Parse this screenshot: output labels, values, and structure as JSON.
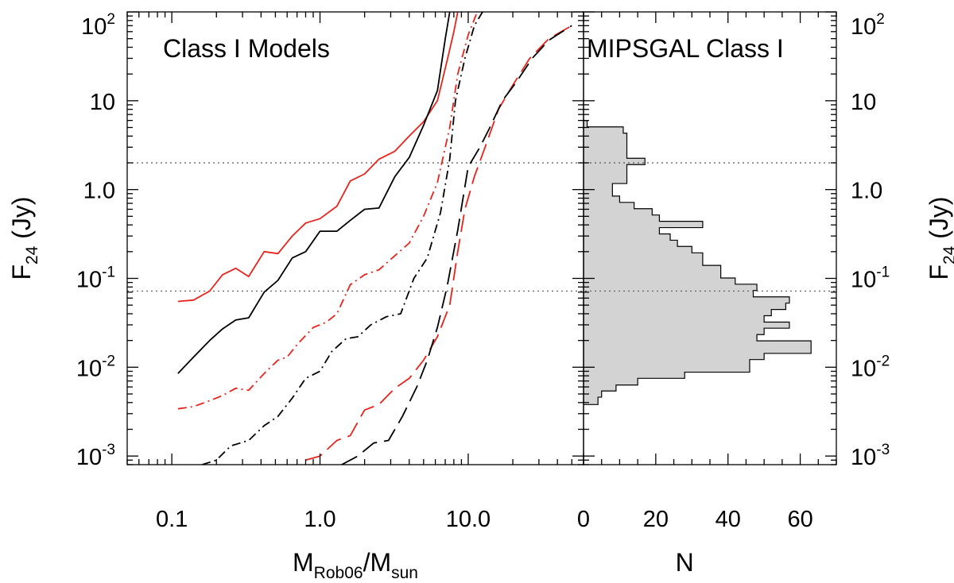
{
  "chart_data": [
    {
      "type": "line",
      "title": "Class I Models",
      "xlabel_main": "M",
      "xlabel_sub1": "Rob06",
      "xlabel_sep": "/M",
      "xlabel_sub2": "sun",
      "ylabel_main": "F",
      "ylabel_sub": "24",
      "ylabel_unit": " (Jy)",
      "xscale": "log",
      "yscale": "log",
      "xlim": [
        0.05,
        60
      ],
      "ylim": [
        0.0008,
        100
      ],
      "x_ticks": [
        {
          "value": 0.1,
          "label": "0.1"
        },
        {
          "value": 1,
          "label": "1.0"
        },
        {
          "value": 10,
          "label": "10.0"
        }
      ],
      "y_ticks": [
        {
          "value": 0.001,
          "base": "10",
          "exp": "-3"
        },
        {
          "value": 0.01,
          "base": "10",
          "exp": "-2"
        },
        {
          "value": 0.1,
          "base": "10",
          "exp": "-1"
        },
        {
          "value": 1,
          "base": "1.0",
          "exp": ""
        },
        {
          "value": 10,
          "base": "10",
          "exp": ""
        },
        {
          "value": 100,
          "base": "10",
          "exp": "2"
        }
      ],
      "reference_lines_y": [
        2.0,
        0.072
      ],
      "series": [
        {
          "color": "#e8231b",
          "dash": "solid",
          "points": [
            [
              0.11,
              0.055
            ],
            [
              0.14,
              0.057
            ],
            [
              0.18,
              0.072
            ],
            [
              0.22,
              0.11
            ],
            [
              0.27,
              0.13
            ],
            [
              0.33,
              0.105
            ],
            [
              0.42,
              0.2
            ],
            [
              0.52,
              0.19
            ],
            [
              0.65,
              0.3
            ],
            [
              0.8,
              0.42
            ],
            [
              1.0,
              0.47
            ],
            [
              1.3,
              0.65
            ],
            [
              1.6,
              1.25
            ],
            [
              2.0,
              1.5
            ],
            [
              2.5,
              2.2
            ],
            [
              3.2,
              2.7
            ],
            [
              4.0,
              4.0
            ],
            [
              5.0,
              5.8
            ],
            [
              6.2,
              10
            ],
            [
              7.2,
              28
            ],
            [
              8.0,
              60
            ],
            [
              8.5,
              100
            ]
          ]
        },
        {
          "color": "#000000",
          "dash": "solid",
          "points": [
            [
              0.11,
              0.0085
            ],
            [
              0.14,
              0.013
            ],
            [
              0.18,
              0.02
            ],
            [
              0.22,
              0.027
            ],
            [
              0.27,
              0.034
            ],
            [
              0.33,
              0.036
            ],
            [
              0.42,
              0.07
            ],
            [
              0.52,
              0.095
            ],
            [
              0.65,
              0.17
            ],
            [
              0.8,
              0.2
            ],
            [
              1.0,
              0.34
            ],
            [
              1.3,
              0.34
            ],
            [
              1.6,
              0.45
            ],
            [
              2.0,
              0.6
            ],
            [
              2.5,
              0.62
            ],
            [
              3.2,
              1.4
            ],
            [
              4.0,
              2.3
            ],
            [
              5.0,
              5.3
            ],
            [
              6.2,
              13
            ],
            [
              7.0,
              50
            ],
            [
              7.5,
              100
            ]
          ]
        },
        {
          "color": "#e8231b",
          "dash": "dashdot",
          "points": [
            [
              0.11,
              0.0034
            ],
            [
              0.14,
              0.0036
            ],
            [
              0.18,
              0.0042
            ],
            [
              0.22,
              0.0048
            ],
            [
              0.27,
              0.0058
            ],
            [
              0.33,
              0.0055
            ],
            [
              0.42,
              0.0085
            ],
            [
              0.52,
              0.012
            ],
            [
              0.6,
              0.013
            ],
            [
              0.7,
              0.018
            ],
            [
              0.9,
              0.028
            ],
            [
              1.1,
              0.032
            ],
            [
              1.3,
              0.04
            ],
            [
              1.6,
              0.085
            ],
            [
              2.0,
              0.11
            ],
            [
              2.5,
              0.125
            ],
            [
              3.2,
              0.18
            ],
            [
              4.0,
              0.25
            ],
            [
              5.0,
              0.5
            ],
            [
              6.2,
              1.2
            ],
            [
              7.5,
              5
            ],
            [
              8.5,
              20
            ],
            [
              10,
              55
            ],
            [
              11.5,
              100
            ]
          ]
        },
        {
          "color": "#000000",
          "dash": "dashdot",
          "points": [
            [
              0.16,
              0.0008
            ],
            [
              0.2,
              0.0009
            ],
            [
              0.25,
              0.0013
            ],
            [
              0.33,
              0.0015
            ],
            [
              0.42,
              0.0022
            ],
            [
              0.52,
              0.0028
            ],
            [
              0.65,
              0.0045
            ],
            [
              0.8,
              0.0075
            ],
            [
              1.0,
              0.009
            ],
            [
              1.2,
              0.015
            ],
            [
              1.5,
              0.021
            ],
            [
              1.8,
              0.022
            ],
            [
              2.2,
              0.03
            ],
            [
              2.8,
              0.037
            ],
            [
              3.5,
              0.04
            ],
            [
              4.3,
              0.1
            ],
            [
              5.3,
              0.17
            ],
            [
              6.5,
              0.55
            ],
            [
              7.5,
              2.2
            ],
            [
              8.2,
              10
            ],
            [
              9.5,
              30
            ],
            [
              11,
              70
            ],
            [
              12.5,
              100
            ]
          ]
        },
        {
          "color": "#e8231b",
          "dash": "longdash",
          "points": [
            [
              0.8,
              0.0009
            ],
            [
              1.0,
              0.001
            ],
            [
              1.3,
              0.0015
            ],
            [
              1.6,
              0.0017
            ],
            [
              2.0,
              0.0033
            ],
            [
              2.5,
              0.0038
            ],
            [
              3.2,
              0.0058
            ],
            [
              4.0,
              0.0075
            ],
            [
              5.0,
              0.012
            ],
            [
              6.2,
              0.022
            ],
            [
              7.5,
              0.05
            ],
            [
              8.5,
              0.2
            ],
            [
              9.5,
              0.6
            ],
            [
              11,
              1.4
            ],
            [
              13,
              3
            ],
            [
              16,
              8
            ],
            [
              20,
              15
            ],
            [
              26,
              30
            ],
            [
              35,
              50
            ],
            [
              50,
              70
            ]
          ]
        },
        {
          "color": "#000000",
          "dash": "longdash",
          "points": [
            [
              1.4,
              0.0008
            ],
            [
              1.8,
              0.001
            ],
            [
              2.3,
              0.0014
            ],
            [
              2.9,
              0.0015
            ],
            [
              3.6,
              0.0028
            ],
            [
              4.5,
              0.006
            ],
            [
              5.3,
              0.012
            ],
            [
              6.2,
              0.028
            ],
            [
              7.2,
              0.08
            ],
            [
              8.5,
              0.35
            ],
            [
              10,
              1.8
            ],
            [
              12,
              3
            ],
            [
              14,
              5
            ],
            [
              17,
              10
            ],
            [
              21,
              16
            ],
            [
              27,
              30
            ],
            [
              35,
              48
            ],
            [
              50,
              70
            ]
          ]
        }
      ]
    },
    {
      "type": "bar",
      "orientation": "horizontal-histogram",
      "title": "MIPSGAL Class I",
      "xlabel": "N",
      "ylabel_main": "F",
      "ylabel_sub": "24",
      "ylabel_unit": " (Jy)",
      "yscale": "log",
      "xlim": [
        0,
        70
      ],
      "ylim": [
        0.0008,
        100
      ],
      "x_ticks": [
        {
          "value": 0,
          "label": "0"
        },
        {
          "value": 20,
          "label": "20"
        },
        {
          "value": 40,
          "label": "40"
        },
        {
          "value": 60,
          "label": "60"
        }
      ],
      "bin_edges": [
        0.0038,
        0.0046,
        0.0054,
        0.0063,
        0.0075,
        0.0088,
        0.0103,
        0.0122,
        0.0143,
        0.0168,
        0.0198,
        0.0233,
        0.0275,
        0.0322,
        0.038,
        0.0447,
        0.0526,
        0.062,
        0.073,
        0.086,
        0.101,
        0.119,
        0.14,
        0.165,
        0.194,
        0.229,
        0.269,
        0.317,
        0.373,
        0.439,
        0.517,
        0.609,
        0.717,
        0.844,
        0.994,
        1.17,
        1.38,
        1.62,
        1.91,
        2.25,
        2.64,
        3.11,
        3.67,
        4.32,
        5.08,
        5.98
      ],
      "counts": [
        4,
        5,
        9,
        15,
        28,
        46,
        46,
        50,
        63,
        63,
        48,
        50,
        57,
        50,
        52,
        56,
        57,
        47,
        48,
        42,
        38,
        38,
        33,
        33,
        30,
        26,
        24,
        21,
        33,
        21,
        19,
        14,
        10,
        8,
        8,
        12,
        12,
        12,
        17,
        12,
        12,
        12,
        12,
        11,
        1
      ],
      "reference_lines_y": [
        2.0,
        0.072
      ]
    }
  ]
}
